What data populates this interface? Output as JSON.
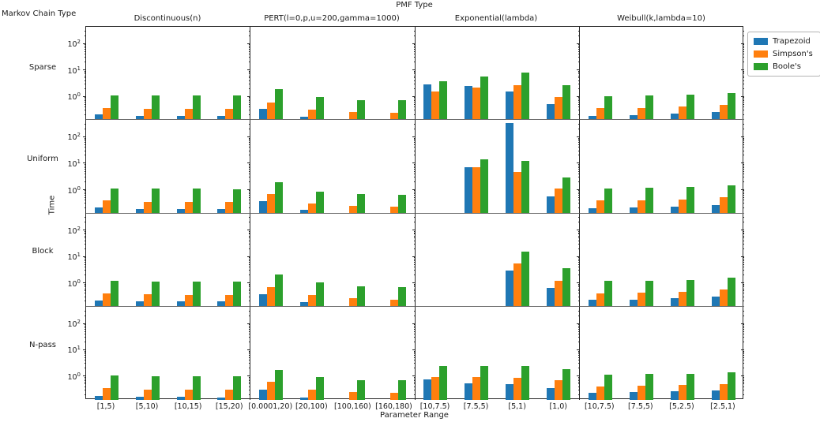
{
  "title": "PMF Type",
  "corner_label": "Markov Chain Type",
  "xlabel": "Parameter Range",
  "ylabel": "Time",
  "legend": {
    "items": [
      {
        "label": "Trapezoid",
        "color": "#1f77b4"
      },
      {
        "label": "Simpson's",
        "color": "#ff7f0e"
      },
      {
        "label": "Boole's",
        "color": "#2ca02c"
      }
    ]
  },
  "y_ticks": [
    {
      "mantissa": "10",
      "exp": "2",
      "value": 100
    },
    {
      "mantissa": "10",
      "exp": "1",
      "value": 10
    },
    {
      "mantissa": "10",
      "exp": "0",
      "value": 1
    }
  ],
  "chart_data": {
    "type": "bar",
    "yscale": "log",
    "ylim": [
      0.13,
      420
    ],
    "grid_on": false,
    "legend_position": "upper-right-outside",
    "title": "PMF Type",
    "xlabel": "Parameter Range",
    "ylabel": "Time",
    "rows": [
      "Sparse",
      "Uniform",
      "Block",
      "N-pass"
    ],
    "columns": [
      {
        "title": "Discontinuous(n)",
        "categories": [
          "[1,5)",
          "[5,10)",
          "[10,15)",
          "[15,20)"
        ]
      },
      {
        "title": "PERT(l=0,p,u=200,gamma=1000)",
        "categories": [
          "[0.0001,20)",
          "[20,100)",
          "[100,160)",
          "[160,180)"
        ]
      },
      {
        "title": "Exponential(lambda)",
        "categories": [
          "[10,7.5)",
          "[7.5,5)",
          "[5,1)",
          "[1,0)"
        ]
      },
      {
        "title": "Weibull(k,lambda=10)",
        "categories": [
          "[10,7.5)",
          "[7.5,5)",
          "[5,2.5)",
          "[2.5,1)"
        ]
      }
    ],
    "series_names": [
      "Trapezoid",
      "Simpson's",
      "Boole's"
    ],
    "panels": [
      {
        "row": "Sparse",
        "column": "Discontinuous(n)",
        "series": [
          {
            "name": "Trapezoid",
            "values": [
              0.2,
              0.18,
              0.18,
              0.18
            ]
          },
          {
            "name": "Simpson's",
            "values": [
              0.35,
              0.33,
              0.33,
              0.33
            ]
          },
          {
            "name": "Boole's",
            "values": [
              1.1,
              1.05,
              1.05,
              1.05
            ]
          }
        ]
      },
      {
        "row": "Sparse",
        "column": "PERT(l=0,p,u=200,gamma=1000)",
        "series": [
          {
            "name": "Trapezoid",
            "values": [
              0.32,
              0.16,
              0.13,
              0.13
            ]
          },
          {
            "name": "Simpson's",
            "values": [
              0.58,
              0.3,
              0.24,
              0.23
            ]
          },
          {
            "name": "Boole's",
            "values": [
              1.9,
              0.9,
              0.7,
              0.68
            ]
          }
        ]
      },
      {
        "row": "Sparse",
        "column": "Exponential(lambda)",
        "series": [
          {
            "name": "Trapezoid",
            "values": [
              2.8,
              2.5,
              1.5,
              0.48
            ]
          },
          {
            "name": "Simpson's",
            "values": [
              1.5,
              2.2,
              2.7,
              0.92
            ]
          },
          {
            "name": "Boole's",
            "values": [
              3.6,
              5.5,
              8.0,
              2.6
            ]
          }
        ]
      },
      {
        "row": "Sparse",
        "column": "Weibull(k,lambda=10)",
        "series": [
          {
            "name": "Trapezoid",
            "values": [
              0.17,
              0.19,
              0.21,
              0.24
            ]
          },
          {
            "name": "Simpson's",
            "values": [
              0.34,
              0.36,
              0.41,
              0.46
            ]
          },
          {
            "name": "Boole's",
            "values": [
              1.0,
              1.07,
              1.18,
              1.27
            ]
          }
        ]
      },
      {
        "row": "Uniform",
        "column": "Discontinuous(n)",
        "series": [
          {
            "name": "Trapezoid",
            "values": [
              0.2,
              0.18,
              0.18,
              0.18
            ]
          },
          {
            "name": "Simpson's",
            "values": [
              0.37,
              0.34,
              0.34,
              0.33
            ]
          },
          {
            "name": "Boole's",
            "values": [
              1.1,
              1.05,
              1.05,
              1.0
            ]
          }
        ]
      },
      {
        "row": "Uniform",
        "column": "PERT(l=0,p,u=200,gamma=1000)",
        "series": [
          {
            "name": "Trapezoid",
            "values": [
              0.35,
              0.17,
              0.13,
              0.13
            ]
          },
          {
            "name": "Simpson's",
            "values": [
              0.67,
              0.29,
              0.23,
              0.22
            ]
          },
          {
            "name": "Boole's",
            "values": [
              1.9,
              0.85,
              0.69,
              0.64
            ]
          }
        ]
      },
      {
        "row": "Uniform",
        "column": "Exponential(lambda)",
        "series": [
          {
            "name": "Trapezoid",
            "values": [
              0,
              6.9,
              350,
              0.55
            ]
          },
          {
            "name": "Simpson's",
            "values": [
              0,
              6.9,
              4.7,
              1.07
            ]
          },
          {
            "name": "Boole's",
            "values": [
              0,
              13.8,
              12.6,
              2.9
            ]
          }
        ]
      },
      {
        "row": "Uniform",
        "column": "Weibull(k,lambda=10)",
        "series": [
          {
            "name": "Trapezoid",
            "values": [
              0.19,
              0.2,
              0.22,
              0.26
            ]
          },
          {
            "name": "Simpson's",
            "values": [
              0.37,
              0.39,
              0.42,
              0.52
            ]
          },
          {
            "name": "Boole's",
            "values": [
              1.07,
              1.18,
              1.27,
              1.4
            ]
          }
        ]
      },
      {
        "row": "Block",
        "column": "Discontinuous(n)",
        "series": [
          {
            "name": "Trapezoid",
            "values": [
              0.21,
              0.2,
              0.19,
              0.19
            ]
          },
          {
            "name": "Simpson's",
            "values": [
              0.4,
              0.36,
              0.35,
              0.35
            ]
          },
          {
            "name": "Boole's",
            "values": [
              1.2,
              1.1,
              1.1,
              1.1
            ]
          }
        ]
      },
      {
        "row": "Block",
        "column": "PERT(l=0,p,u=200,gamma=1000)",
        "series": [
          {
            "name": "Trapezoid",
            "values": [
              0.37,
              0.18,
              0.13,
              0.13
            ]
          },
          {
            "name": "Simpson's",
            "values": [
              0.7,
              0.33,
              0.25,
              0.23
            ]
          },
          {
            "name": "Boole's",
            "values": [
              2.0,
              1.0,
              0.74,
              0.66
            ]
          }
        ]
      },
      {
        "row": "Block",
        "column": "Exponential(lambda)",
        "series": [
          {
            "name": "Trapezoid",
            "values": [
              0,
              0,
              3.0,
              0.63
            ]
          },
          {
            "name": "Simpson's",
            "values": [
              0,
              0,
              5.5,
              1.2
            ]
          },
          {
            "name": "Boole's",
            "values": [
              0,
              0,
              15.0,
              3.5
            ]
          }
        ]
      },
      {
        "row": "Block",
        "column": "Weibull(k,lambda=10)",
        "series": [
          {
            "name": "Trapezoid",
            "values": [
              0.22,
              0.23,
              0.25,
              0.29
            ]
          },
          {
            "name": "Simpson's",
            "values": [
              0.39,
              0.42,
              0.45,
              0.55
            ]
          },
          {
            "name": "Boole's",
            "values": [
              1.2,
              1.22,
              1.3,
              1.52
            ]
          }
        ]
      },
      {
        "row": "N-pass",
        "column": "Discontinuous(n)",
        "series": [
          {
            "name": "Trapezoid",
            "values": [
              0.19,
              0.17,
              0.17,
              0.16
            ]
          },
          {
            "name": "Simpson's",
            "values": [
              0.36,
              0.33,
              0.33,
              0.32
            ]
          },
          {
            "name": "Boole's",
            "values": [
              1.15,
              1.05,
              1.05,
              1.03
            ]
          }
        ]
      },
      {
        "row": "N-pass",
        "column": "PERT(l=0,p,u=200,gamma=1000)",
        "series": [
          {
            "name": "Trapezoid",
            "values": [
              0.32,
              0.16,
              0.13,
              0.13
            ]
          },
          {
            "name": "Simpson's",
            "values": [
              0.63,
              0.33,
              0.27,
              0.25
            ]
          },
          {
            "name": "Boole's",
            "values": [
              1.8,
              1.0,
              0.75,
              0.72
            ]
          }
        ]
      },
      {
        "row": "N-pass",
        "column": "Exponential(lambda)",
        "series": [
          {
            "name": "Trapezoid",
            "values": [
              0.79,
              0.58,
              0.51,
              0.38
            ]
          },
          {
            "name": "Simpson's",
            "values": [
              1.0,
              1.0,
              0.93,
              0.72
            ]
          },
          {
            "name": "Boole's",
            "values": [
              2.5,
              2.5,
              2.5,
              2.0
            ]
          }
        ]
      },
      {
        "row": "N-pass",
        "column": "Weibull(k,lambda=10)",
        "series": [
          {
            "name": "Trapezoid",
            "values": [
              0.25,
              0.26,
              0.28,
              0.29
            ]
          },
          {
            "name": "Simpson's",
            "values": [
              0.42,
              0.45,
              0.48,
              0.52
            ]
          },
          {
            "name": "Boole's",
            "values": [
              1.23,
              1.29,
              1.3,
              1.45
            ]
          }
        ]
      }
    ]
  }
}
